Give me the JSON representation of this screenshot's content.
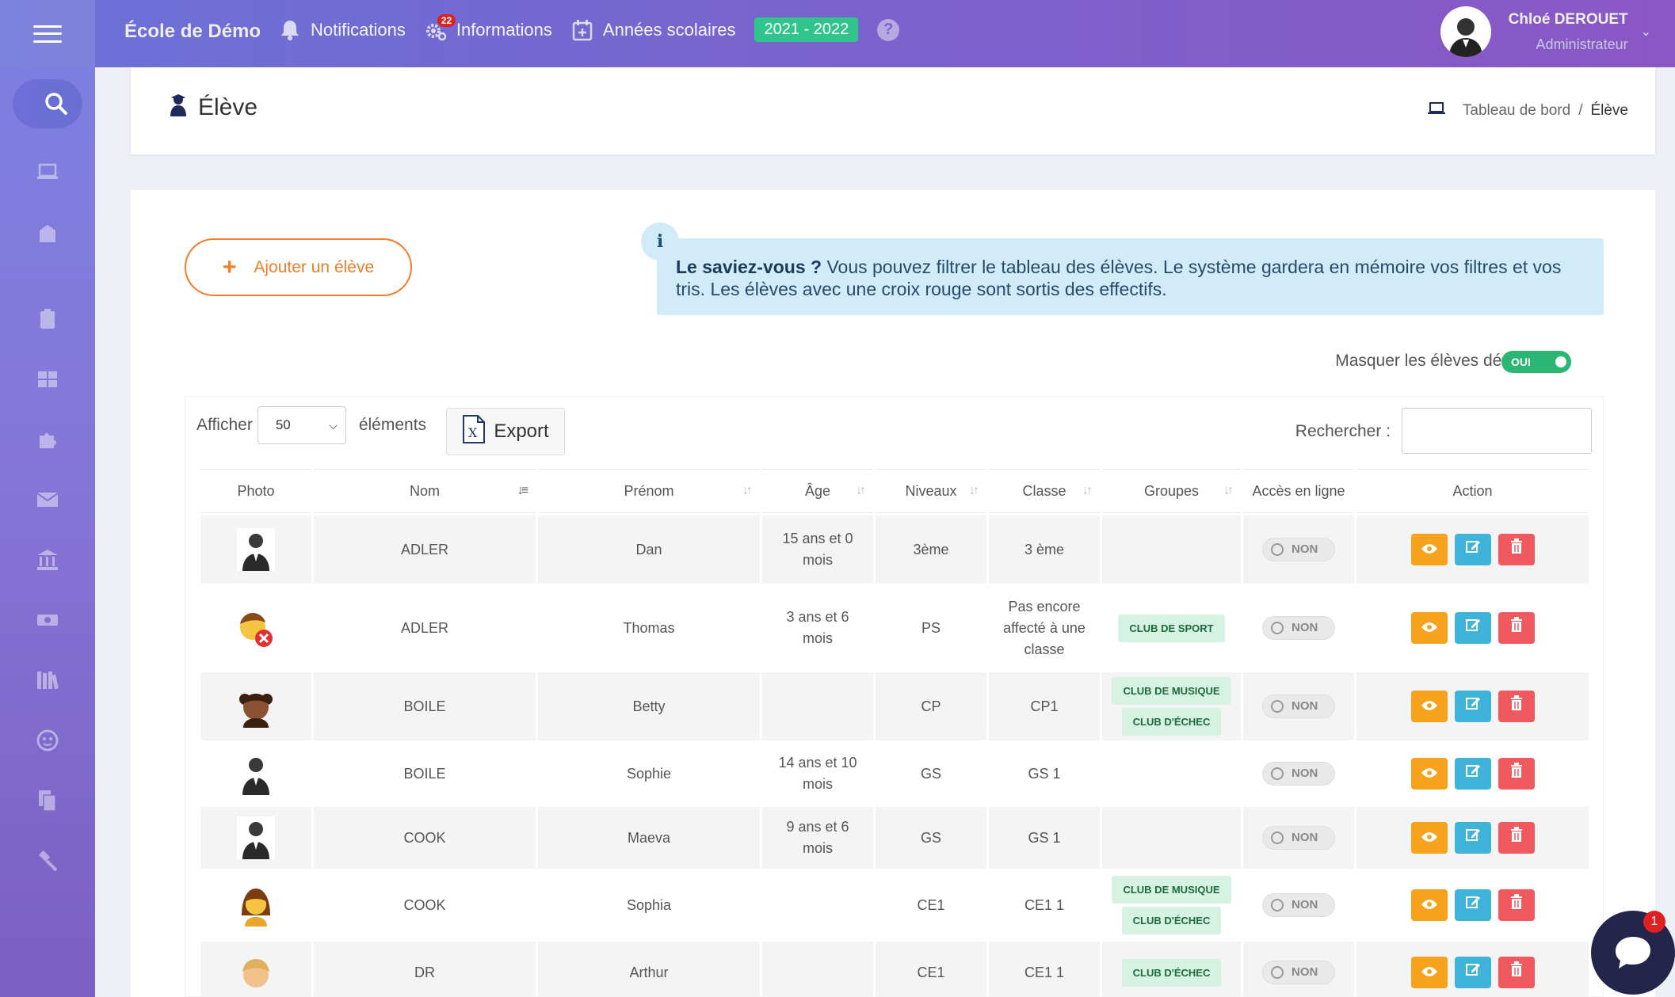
{
  "header": {
    "brand": "École de Démo",
    "nav": [
      {
        "label": "Notifications",
        "icon": "bell-icon"
      },
      {
        "label": "Informations",
        "icon": "gears-icon",
        "badge": "22"
      },
      {
        "label": "Années scolaires",
        "icon": "calendar-plus-icon"
      }
    ],
    "year": "2021 - 2022",
    "help": "?",
    "user": {
      "name": "Chloé DEROUET",
      "role": "Administrateur"
    }
  },
  "sidebar": {
    "items": [
      "search-icon",
      "laptop-icon",
      "school-icon",
      "clipboard-icon",
      "grid-icon",
      "puzzle-icon",
      "envelope-icon",
      "bank-icon",
      "money-icon",
      "books-icon",
      "face-icon",
      "files-icon",
      "gavel-icon"
    ]
  },
  "page": {
    "title": "Élève",
    "breadcrumb": {
      "home": "Tableau de bord",
      "sep": "/",
      "current": "Élève"
    }
  },
  "main": {
    "add_label": "Ajouter un élève",
    "info_icon": "i",
    "info_bold": "Le saviez-vous ?",
    "info_text": " Vous pouvez filtrer le tableau des élèves. Le système gardera en mémoire vos filtres et vos tris. Les élèves avec une croix rouge sont sortis des effectifs.",
    "hide_label": "Masquer les élèves désistés",
    "hide_toggle": "OUI"
  },
  "table_controls": {
    "show_before": "Afficher",
    "page_length": "50",
    "show_after": "éléments",
    "export_label": "Export",
    "search_label": "Rechercher :",
    "search_value": ""
  },
  "table": {
    "columns": [
      "Photo",
      "Nom",
      "Prénom",
      "Âge",
      "Niveaux",
      "Classe",
      "Groupes",
      "Accès en ligne",
      "Action"
    ],
    "rows": [
      {
        "photo": "silhouette",
        "nom": "ADLER",
        "prenom": "Dan",
        "age": "15 ans et 0 mois",
        "niveau": "3ème",
        "classe": "3 ème",
        "groupes": [],
        "acces": "NON"
      },
      {
        "photo": "boy-removed",
        "nom": "ADLER",
        "prenom": "Thomas",
        "age": "3 ans et 6 mois",
        "niveau": "PS",
        "classe": "Pas encore affecté à une classe",
        "groupes": [
          "CLUB DE SPORT"
        ],
        "acces": "NON"
      },
      {
        "photo": "girl-dark",
        "nom": "BOILE",
        "prenom": "Betty",
        "age": "",
        "niveau": "CP",
        "classe": "CP1",
        "groupes": [
          "CLUB DE MUSIQUE",
          "CLUB D'ÉCHEC"
        ],
        "acces": "NON"
      },
      {
        "photo": "silhouette",
        "nom": "BOILE",
        "prenom": "Sophie",
        "age": "14 ans et 10 mois",
        "niveau": "GS",
        "classe": "GS 1",
        "groupes": [],
        "acces": "NON"
      },
      {
        "photo": "silhouette",
        "nom": "COOK",
        "prenom": "Maeva",
        "age": "9 ans et 6 mois",
        "niveau": "GS",
        "classe": "GS 1",
        "groupes": [],
        "acces": "NON"
      },
      {
        "photo": "woman",
        "nom": "COOK",
        "prenom": "Sophia",
        "age": "",
        "niveau": "CE1",
        "classe": "CE1 1",
        "groupes": [
          "CLUB DE MUSIQUE",
          "CLUB D'ÉCHEC"
        ],
        "acces": "NON"
      },
      {
        "photo": "boy-blond",
        "nom": "DR",
        "prenom": "Arthur",
        "age": "",
        "niveau": "CE1",
        "classe": "CE1 1",
        "groupes": [
          "CLUB D'ÉCHEC"
        ],
        "acces": "NON"
      }
    ]
  },
  "chat": {
    "badge": "1"
  }
}
